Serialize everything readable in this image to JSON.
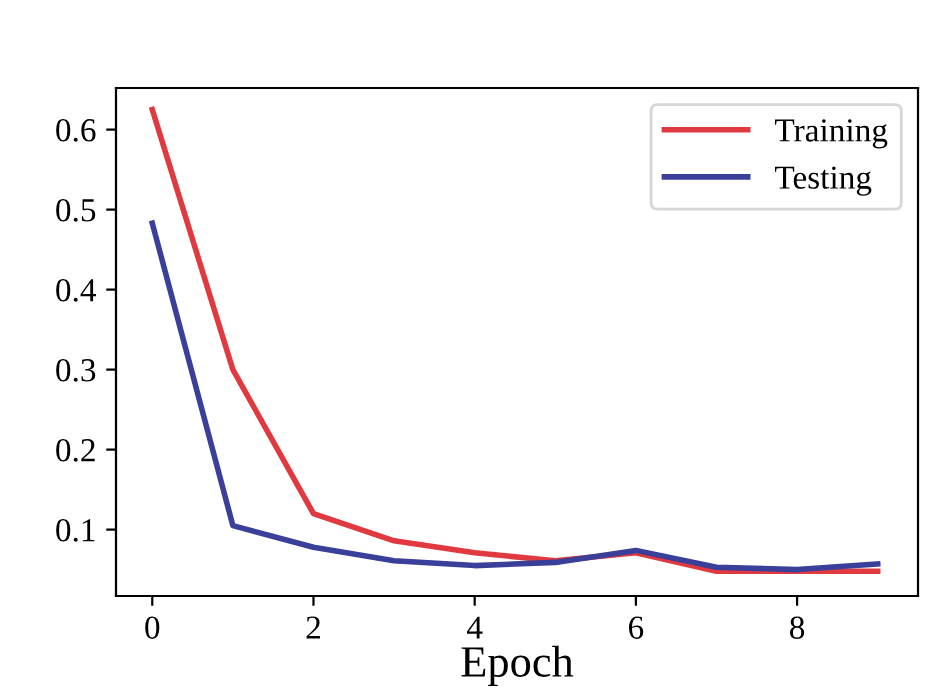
{
  "chart_data": {
    "type": "line",
    "xlabel": "Epoch",
    "x": [
      0,
      1,
      2,
      3,
      4,
      5,
      6,
      7,
      8,
      9
    ],
    "series": [
      {
        "name": "Training",
        "color": "#e03a40",
        "values": [
          0.625,
          0.3,
          0.12,
          0.086,
          0.071,
          0.061,
          0.071,
          0.048,
          0.048,
          0.048
        ]
      },
      {
        "name": "Testing",
        "color": "#3a3f9a",
        "values": [
          0.483,
          0.105,
          0.078,
          0.061,
          0.055,
          0.059,
          0.074,
          0.053,
          0.05,
          0.057
        ]
      }
    ],
    "xlim": [
      -0.45,
      9.5
    ],
    "ylim": [
      0.017,
      0.652
    ],
    "xticks": [
      0,
      2,
      4,
      6,
      8
    ],
    "yticks": [
      0.1,
      0.2,
      0.3,
      0.4,
      0.5,
      0.6
    ],
    "legend": "top right",
    "grid": false,
    "marker": "none",
    "line_style": "solid"
  }
}
